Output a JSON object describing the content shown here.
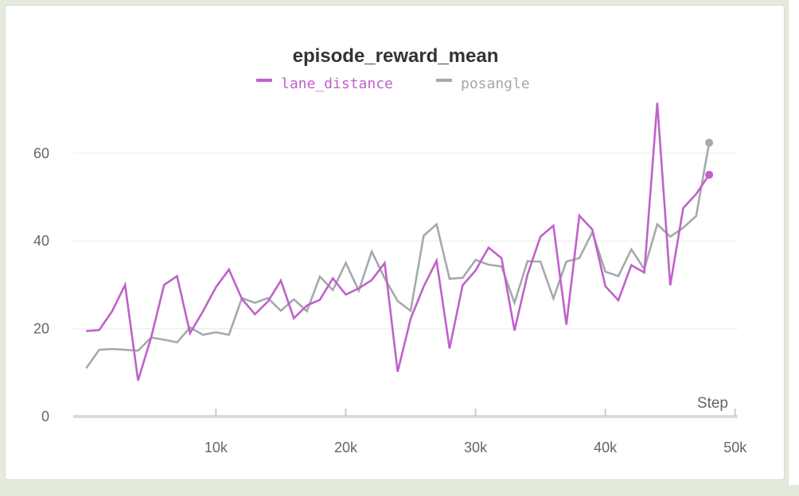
{
  "chart_data": {
    "type": "line",
    "title": "episode_reward_mean",
    "xlabel": "Step",
    "ylabel": "",
    "xlim": [
      0,
      50200
    ],
    "ylim": [
      0,
      75
    ],
    "x_ticks": [
      {
        "value": 10000,
        "label": "10k"
      },
      {
        "value": 20000,
        "label": "20k"
      },
      {
        "value": 30000,
        "label": "30k"
      },
      {
        "value": 40000,
        "label": "40k"
      },
      {
        "value": 50000,
        "label": "50k"
      }
    ],
    "y_ticks": [
      {
        "value": 0,
        "label": "0"
      },
      {
        "value": 20,
        "label": "20"
      },
      {
        "value": 40,
        "label": "40"
      },
      {
        "value": 60,
        "label": "60"
      }
    ],
    "grid": true,
    "legend_position": "top-center",
    "series": [
      {
        "name": "lane_distance",
        "color": "#c061cb",
        "points": [
          [
            0,
            19.5
          ],
          [
            1000,
            19.7
          ],
          [
            2000,
            24
          ],
          [
            3000,
            30
          ],
          [
            4000,
            8.2
          ],
          [
            5000,
            18
          ],
          [
            6000,
            30
          ],
          [
            7000,
            32
          ],
          [
            8000,
            19
          ],
          [
            9000,
            24
          ],
          [
            10000,
            29.5
          ],
          [
            11000,
            33.5
          ],
          [
            12000,
            26.8
          ],
          [
            13000,
            23.3
          ],
          [
            14000,
            26.2
          ],
          [
            15000,
            31
          ],
          [
            16000,
            22.4
          ],
          [
            17000,
            25.3
          ],
          [
            18000,
            26.6
          ],
          [
            19000,
            31.5
          ],
          [
            20000,
            27.8
          ],
          [
            21000,
            29.2
          ],
          [
            22000,
            31.1
          ],
          [
            23000,
            35
          ],
          [
            24000,
            10.2
          ],
          [
            25000,
            22.3
          ],
          [
            26000,
            29.6
          ],
          [
            27000,
            35.5
          ],
          [
            28000,
            15.5
          ],
          [
            29000,
            29.9
          ],
          [
            30000,
            33.3
          ],
          [
            31000,
            38.5
          ],
          [
            32000,
            36.1
          ],
          [
            33000,
            19.6
          ],
          [
            34000,
            32.3
          ],
          [
            35000,
            41
          ],
          [
            36000,
            43.5
          ],
          [
            37000,
            20.9
          ],
          [
            38000,
            45.8
          ],
          [
            39000,
            42.6
          ],
          [
            40000,
            29.7
          ],
          [
            41000,
            26.5
          ],
          [
            42000,
            34.5
          ],
          [
            43000,
            32.8
          ],
          [
            44000,
            71.5
          ],
          [
            45000,
            29.9
          ],
          [
            46000,
            47.5
          ],
          [
            47000,
            50.7
          ],
          [
            48000,
            55.1
          ]
        ]
      },
      {
        "name": "posangle",
        "color": "#a6a9ac",
        "points": [
          [
            0,
            11
          ],
          [
            1000,
            15.2
          ],
          [
            2000,
            15.4
          ],
          [
            3000,
            15.2
          ],
          [
            4000,
            15
          ],
          [
            5000,
            18
          ],
          [
            6000,
            17.5
          ],
          [
            7000,
            16.9
          ],
          [
            8000,
            20.3
          ],
          [
            9000,
            18.6
          ],
          [
            10000,
            19.2
          ],
          [
            11000,
            18.6
          ],
          [
            12000,
            27
          ],
          [
            13000,
            25.9
          ],
          [
            14000,
            27
          ],
          [
            15000,
            24.1
          ],
          [
            16000,
            26.7
          ],
          [
            17000,
            24
          ],
          [
            18000,
            31.9
          ],
          [
            19000,
            28.8
          ],
          [
            20000,
            35
          ],
          [
            21000,
            28.7
          ],
          [
            22000,
            37.6
          ],
          [
            23000,
            31.5
          ],
          [
            24000,
            26.3
          ],
          [
            25000,
            24.1
          ],
          [
            26000,
            41.2
          ],
          [
            27000,
            43.8
          ],
          [
            28000,
            31.4
          ],
          [
            29000,
            31.6
          ],
          [
            30000,
            35.7
          ],
          [
            31000,
            34.6
          ],
          [
            32000,
            34.2
          ],
          [
            33000,
            25.9
          ],
          [
            34000,
            35.4
          ],
          [
            35000,
            35.3
          ],
          [
            36000,
            26.9
          ],
          [
            37000,
            35.3
          ],
          [
            38000,
            36.1
          ],
          [
            39000,
            42
          ],
          [
            40000,
            33
          ],
          [
            41000,
            32
          ],
          [
            42000,
            38.1
          ],
          [
            43000,
            33.6
          ],
          [
            44000,
            43.8
          ],
          [
            45000,
            41
          ],
          [
            46000,
            43
          ],
          [
            47000,
            45.7
          ],
          [
            48000,
            62.4
          ]
        ]
      }
    ]
  }
}
